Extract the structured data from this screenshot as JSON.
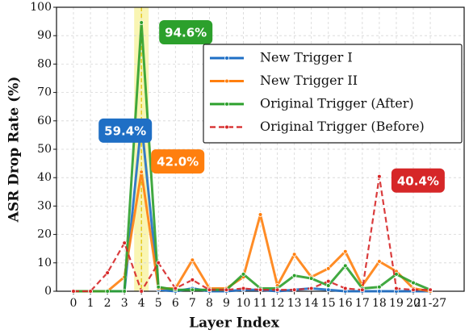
{
  "chart_data": {
    "type": "line",
    "xlabel": "Layer Index",
    "ylabel": "ASR Drop Rate (%)",
    "categories": [
      "0",
      "1",
      "2",
      "3",
      "4",
      "5",
      "6",
      "7",
      "8",
      "9",
      "10",
      "11",
      "12",
      "13",
      "14",
      "15",
      "16",
      "17",
      "18",
      "19",
      "20",
      "21-27"
    ],
    "ylim": [
      0,
      100
    ],
    "yticks": [
      0,
      10,
      20,
      30,
      40,
      50,
      60,
      70,
      80,
      90,
      100
    ],
    "grid": true,
    "legend": "upper right",
    "highlight": 4,
    "series": [
      {
        "name": "New Trigger I",
        "color": "#1f6fc5",
        "dash": false,
        "values": [
          0,
          0,
          0,
          0,
          59.4,
          0.5,
          0,
          1,
          0,
          0,
          0.5,
          0.5,
          0,
          0.5,
          1,
          0.5,
          0,
          0,
          0,
          0,
          0,
          0
        ],
        "value_labels": [
          null,
          null,
          null,
          null,
          "59.4%",
          null,
          null,
          null,
          null,
          null,
          null,
          null,
          null,
          null,
          null,
          null,
          null,
          null,
          null,
          null,
          null,
          null
        ]
      },
      {
        "name": "New Trigger II",
        "color": "#ff7f0e",
        "dash": false,
        "values": [
          0,
          0,
          0,
          5,
          42.0,
          1,
          1,
          11,
          1,
          1,
          5,
          27,
          2,
          13,
          5,
          8,
          14,
          2,
          10.5,
          7,
          1,
          0
        ],
        "value_labels": [
          null,
          null,
          null,
          null,
          "42.0%",
          null,
          null,
          null,
          null,
          null,
          null,
          null,
          null,
          null,
          null,
          null,
          null,
          null,
          null,
          null,
          null,
          null
        ]
      },
      {
        "name": "Original Trigger (After)",
        "color": "#2ca02c",
        "dash": false,
        "values": [
          0,
          0,
          0,
          0,
          94.6,
          1.5,
          0.5,
          0.5,
          0.5,
          0.5,
          6,
          1,
          1,
          5.5,
          4.5,
          2,
          9,
          1,
          1.5,
          6,
          3,
          0.5
        ],
        "value_labels": [
          null,
          null,
          null,
          null,
          "94.6%",
          null,
          null,
          null,
          null,
          null,
          null,
          null,
          null,
          null,
          null,
          null,
          null,
          null,
          null,
          null,
          null,
          null
        ]
      },
      {
        "name": "Original Trigger (Before)",
        "color": "#d62728",
        "dash": true,
        "values": [
          0,
          0,
          6.5,
          17,
          0,
          10,
          1,
          4,
          0.5,
          0.5,
          1,
          0.5,
          0.5,
          0.5,
          1,
          3.5,
          1,
          0.5,
          40.4,
          1,
          0.5,
          0.5
        ],
        "value_labels": [
          null,
          null,
          null,
          null,
          null,
          null,
          null,
          null,
          null,
          null,
          null,
          null,
          null,
          null,
          null,
          null,
          null,
          null,
          "40.4%",
          null,
          null,
          null
        ]
      }
    ]
  }
}
